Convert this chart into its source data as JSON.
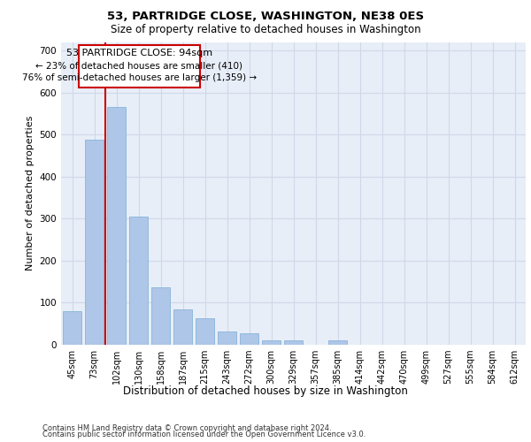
{
  "title1": "53, PARTRIDGE CLOSE, WASHINGTON, NE38 0ES",
  "title2": "Size of property relative to detached houses in Washington",
  "xlabel": "Distribution of detached houses by size in Washington",
  "ylabel": "Number of detached properties",
  "bar_labels": [
    "45sqm",
    "73sqm",
    "102sqm",
    "130sqm",
    "158sqm",
    "187sqm",
    "215sqm",
    "243sqm",
    "272sqm",
    "300sqm",
    "329sqm",
    "357sqm",
    "385sqm",
    "414sqm",
    "442sqm",
    "470sqm",
    "499sqm",
    "527sqm",
    "555sqm",
    "584sqm",
    "612sqm"
  ],
  "bar_values": [
    80,
    487,
    565,
    305,
    137,
    85,
    63,
    32,
    27,
    10,
    10,
    0,
    10,
    0,
    0,
    0,
    0,
    0,
    0,
    0,
    0
  ],
  "bar_color": "#aec6e8",
  "bar_edge_color": "#7aadd4",
  "grid_color": "#d0d8e8",
  "background_color": "#e8eef8",
  "vline_x": 1.5,
  "vline_color": "#cc0000",
  "annotation_line1": "53 PARTRIDGE CLOSE: 94sqm",
  "annotation_line2": "← 23% of detached houses are smaller (410)",
  "annotation_line3": "76% of semi-detached houses are larger (1,359) →",
  "ylim": [
    0,
    720
  ],
  "yticks": [
    0,
    100,
    200,
    300,
    400,
    500,
    600,
    700
  ],
  "footer_line1": "Contains HM Land Registry data © Crown copyright and database right 2024.",
  "footer_line2": "Contains public sector information licensed under the Open Government Licence v3.0."
}
